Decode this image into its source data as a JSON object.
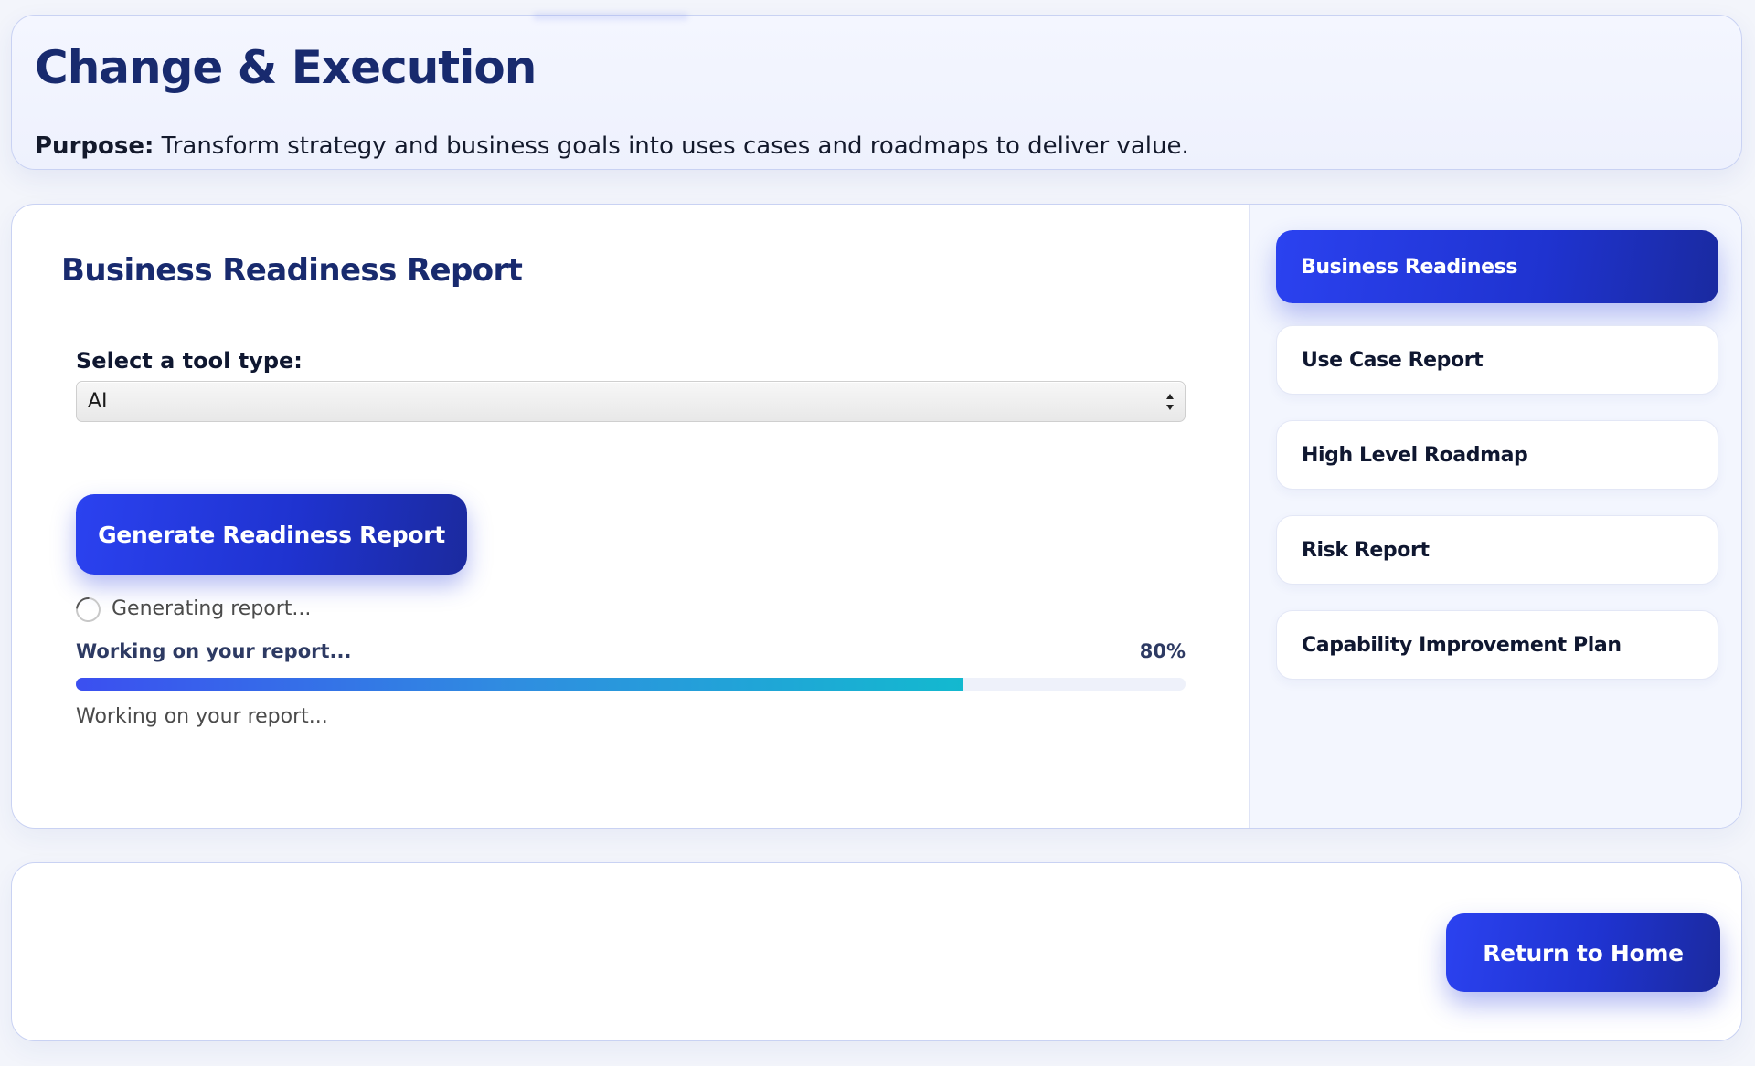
{
  "header": {
    "title": "Change & Execution",
    "purpose_label": "Purpose:",
    "purpose_text": "Transform strategy and business goals into uses cases and roadmaps to deliver value."
  },
  "main": {
    "section_title": "Business Readiness Report",
    "tool_label": "Select a tool type:",
    "tool_select_value": "AI",
    "generate_button": "Generate Readiness Report",
    "status_text": "Generating report...",
    "progress_label": "Working on your report...",
    "progress_percent_text": "80%",
    "progress_value": 0.8,
    "progress_note": "Working on your report..."
  },
  "sidebar": {
    "items": [
      {
        "label": "Business Readiness",
        "active": true
      },
      {
        "label": "Use Case Report",
        "active": false
      },
      {
        "label": "High Level Roadmap",
        "active": false
      },
      {
        "label": "Risk Report",
        "active": false
      },
      {
        "label": "Capability Improvement Plan",
        "active": false
      }
    ]
  },
  "footer": {
    "home_button": "Return to Home"
  },
  "colors": {
    "accent": "#1f33d0",
    "title": "#182a6e",
    "progress_start": "#3b4ff0",
    "progress_end": "#13b9cf"
  },
  "icons": {
    "select_arrows": "select-arrows-icon",
    "spinner": "loading-spinner-icon"
  }
}
